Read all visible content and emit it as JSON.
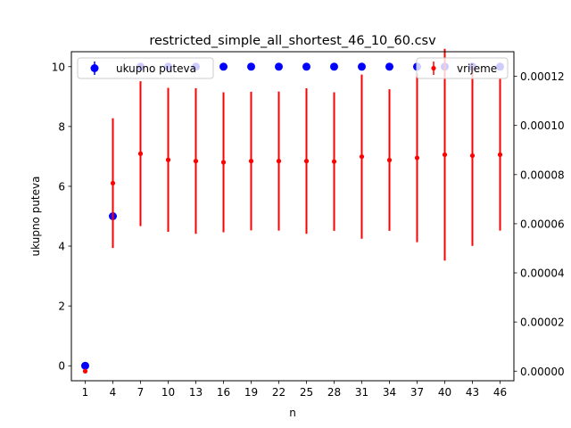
{
  "chart_data": {
    "type": "scatter",
    "title": "restricted_simple_all_shortest_46_10_60.csv",
    "xlabel": "n",
    "ylabel_left": "ukupno puteva",
    "ylabel_right": "",
    "x": [
      1,
      4,
      7,
      10,
      13,
      16,
      19,
      22,
      25,
      28,
      31,
      34,
      37,
      40,
      43,
      46
    ],
    "x_ticks": [
      "1",
      "4",
      "7",
      "10",
      "13",
      "16",
      "19",
      "22",
      "25",
      "28",
      "31",
      "34",
      "37",
      "40",
      "43",
      "46"
    ],
    "xlim": [
      -0.5,
      47.5
    ],
    "ylim_left": [
      -0.5,
      10.5
    ],
    "ylim_right": [
      -3.9e-06,
      0.00013
    ],
    "y_ticks_left": [
      "0",
      "2",
      "4",
      "6",
      "8",
      "10"
    ],
    "y_ticks_right": [
      "0.00000",
      "0.00002",
      "0.00004",
      "0.00006",
      "0.00008",
      "0.00010",
      "0.00012"
    ],
    "series": [
      {
        "name": "ukupno puteva",
        "axis": "left",
        "color": "#0000ff",
        "values": [
          0,
          5,
          10,
          10,
          10,
          10,
          10,
          10,
          10,
          10,
          10,
          10,
          10,
          10,
          10,
          10
        ],
        "err": [
          0,
          0,
          0,
          0,
          0,
          0,
          0,
          0,
          0,
          0,
          0,
          0,
          0,
          0,
          0,
          0
        ]
      },
      {
        "name": "vrijeme",
        "axis": "right",
        "color": "#ff0000",
        "values": [
          0,
          7.65e-05,
          8.85e-05,
          8.6e-05,
          8.55e-05,
          8.5e-05,
          8.55e-05,
          8.55e-05,
          8.55e-05,
          8.53e-05,
          8.73e-05,
          8.59e-05,
          8.68e-05,
          8.81e-05,
          8.77e-05,
          8.81e-05
        ],
        "err": [
          0,
          2.64e-05,
          2.95e-05,
          2.93e-05,
          2.96e-05,
          2.85e-05,
          2.82e-05,
          2.83e-05,
          2.96e-05,
          2.82e-05,
          3.34e-05,
          2.88e-05,
          3.43e-05,
          4.31e-05,
          3.67e-05,
          3.09e-05
        ]
      }
    ],
    "legend_left": "upper-left",
    "legend_right": "upper-right",
    "grid": false
  }
}
